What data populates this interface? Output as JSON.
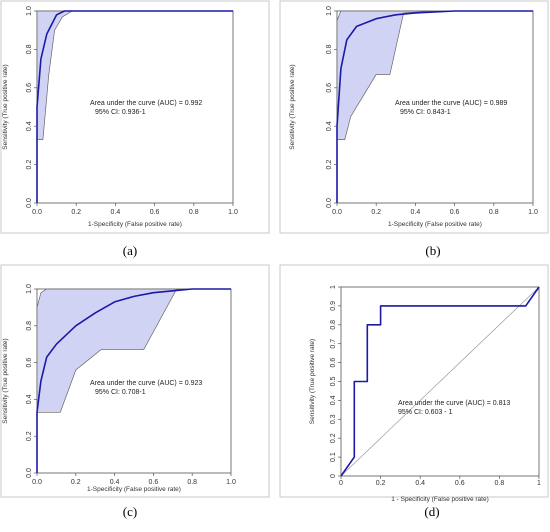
{
  "colors": {
    "curve": "#1a1aa6",
    "band_fill": "#c9cbf3",
    "band_edge": "#666666",
    "frame": "#555555",
    "diagonal": "#9a9a9a"
  },
  "chart_data": [
    {
      "panel_label": "(a)",
      "type": "line",
      "xlabel": "1-Specificity (False positive rate)",
      "ylabel": "Sensitivity (True positive rate)",
      "xlim": [
        0,
        1
      ],
      "ylim": [
        0,
        1
      ],
      "xticks": [
        "0.0",
        "0.2",
        "0.4",
        "0.6",
        "0.8",
        "1.0"
      ],
      "yticks": [
        "0.0",
        "0.2",
        "0.4",
        "0.6",
        "0.8",
        "1.0"
      ],
      "grid": false,
      "annotation": [
        "Area under the curve (AUC) = 0.992",
        "95% CI: 0.936-1"
      ],
      "series": [
        {
          "x": [
            0,
            0,
            0.02,
            0.05,
            0.1,
            0.14,
            0.2,
            0.5,
            1
          ],
          "y": [
            0,
            0.5,
            0.75,
            0.88,
            0.98,
            1.0,
            1.0,
            1.0,
            1.0
          ]
        }
      ],
      "ci_band": {
        "upper": {
          "x": [
            0,
            0,
            0.05,
            0.2,
            1
          ],
          "y": [
            0,
            1.0,
            1.0,
            1.0,
            1.0
          ]
        },
        "lower": {
          "x": [
            0,
            0,
            0.03,
            0.06,
            0.09,
            0.13,
            0.18,
            1
          ],
          "y": [
            0,
            0.33,
            0.33,
            0.67,
            0.9,
            0.97,
            1.0,
            1.0
          ]
        }
      }
    },
    {
      "panel_label": "(b)",
      "type": "line",
      "xlabel": "1-Specificity (False positive rate)",
      "ylabel": "Sensitivity (True positive rate)",
      "xlim": [
        0,
        1
      ],
      "ylim": [
        0,
        1
      ],
      "xticks": [
        "0.0",
        "0.2",
        "0.4",
        "0.6",
        "0.8",
        "1.0"
      ],
      "yticks": [
        "0.0",
        "0.2",
        "0.4",
        "0.6",
        "0.8",
        "1.0"
      ],
      "grid": false,
      "annotation": [
        "Area under the curve (AUC) = 0.989",
        "95% CI: 0.843-1"
      ],
      "series": [
        {
          "x": [
            0,
            0,
            0.02,
            0.05,
            0.1,
            0.2,
            0.3,
            0.4,
            0.6,
            1
          ],
          "y": [
            0,
            0.4,
            0.7,
            0.85,
            0.92,
            0.96,
            0.98,
            0.99,
            1.0,
            1.0
          ]
        }
      ],
      "ci_band": {
        "upper": {
          "x": [
            0,
            0,
            0.02,
            0.1,
            0.2,
            1
          ],
          "y": [
            0,
            0.95,
            1.0,
            1.0,
            1.0,
            1.0
          ]
        },
        "lower": {
          "x": [
            0,
            0,
            0.04,
            0.07,
            0.2,
            0.27,
            0.34,
            0.5,
            1
          ],
          "y": [
            0,
            0.33,
            0.33,
            0.45,
            0.67,
            0.67,
            0.99,
            1.0,
            1.0
          ]
        }
      }
    },
    {
      "panel_label": "(c)",
      "type": "line",
      "xlabel": "1-Specificity (False positive rate)",
      "ylabel": "Sensitivity (True positive rate)",
      "xlim": [
        0,
        1
      ],
      "ylim": [
        0,
        1
      ],
      "xticks": [
        "0.0",
        "0.2",
        "0.4",
        "0.6",
        "0.8",
        "1.0"
      ],
      "yticks": [
        "0.0",
        "0.2",
        "0.4",
        "0.6",
        "0.8",
        "1.0"
      ],
      "grid": false,
      "annotation": [
        "Area under the curve (AUC) = 0.923",
        "95% CI: 0.708-1"
      ],
      "series": [
        {
          "x": [
            0,
            0,
            0.02,
            0.05,
            0.1,
            0.2,
            0.3,
            0.4,
            0.5,
            0.6,
            0.7,
            0.8,
            1
          ],
          "y": [
            0,
            0.33,
            0.5,
            0.63,
            0.7,
            0.8,
            0.87,
            0.93,
            0.96,
            0.98,
            0.99,
            1.0,
            1.0
          ]
        }
      ],
      "ci_band": {
        "upper": {
          "x": [
            0,
            0,
            0.02,
            0.05,
            0.7,
            1
          ],
          "y": [
            0,
            0.9,
            0.98,
            1.0,
            1.0,
            1.0
          ]
        },
        "lower": {
          "x": [
            0,
            0,
            0.12,
            0.2,
            0.33,
            0.55,
            0.72,
            1
          ],
          "y": [
            0,
            0.33,
            0.33,
            0.56,
            0.67,
            0.67,
            1.0,
            1.0
          ]
        }
      }
    },
    {
      "panel_label": "(d)",
      "type": "line",
      "xlabel": "1 - Specificity (False positive rate)",
      "ylabel": "Sensitivity (True positive rate)",
      "xlim": [
        0,
        1
      ],
      "ylim": [
        0,
        1
      ],
      "xticks": [
        "0",
        "0.2",
        "0.4",
        "0.6",
        "0.8",
        "1"
      ],
      "yticks": [
        "0",
        "0.1",
        "0.2",
        "0.3",
        "0.4",
        "0.5",
        "0.6",
        "0.7",
        "0.8",
        "0.9",
        "1"
      ],
      "grid": false,
      "annotation": [
        "Area under the curve (AUC) = 0.813",
        "95% CI: 0.603 - 1"
      ],
      "series": [
        {
          "x": [
            0,
            0.067,
            0.067,
            0.133,
            0.133,
            0.2,
            0.2,
            0.933,
            1.0
          ],
          "y": [
            0,
            0.1,
            0.5,
            0.5,
            0.8,
            0.8,
            0.9,
            0.9,
            1.0
          ]
        }
      ],
      "reference_line": {
        "x": [
          0,
          1
        ],
        "y": [
          0,
          1
        ]
      }
    }
  ]
}
